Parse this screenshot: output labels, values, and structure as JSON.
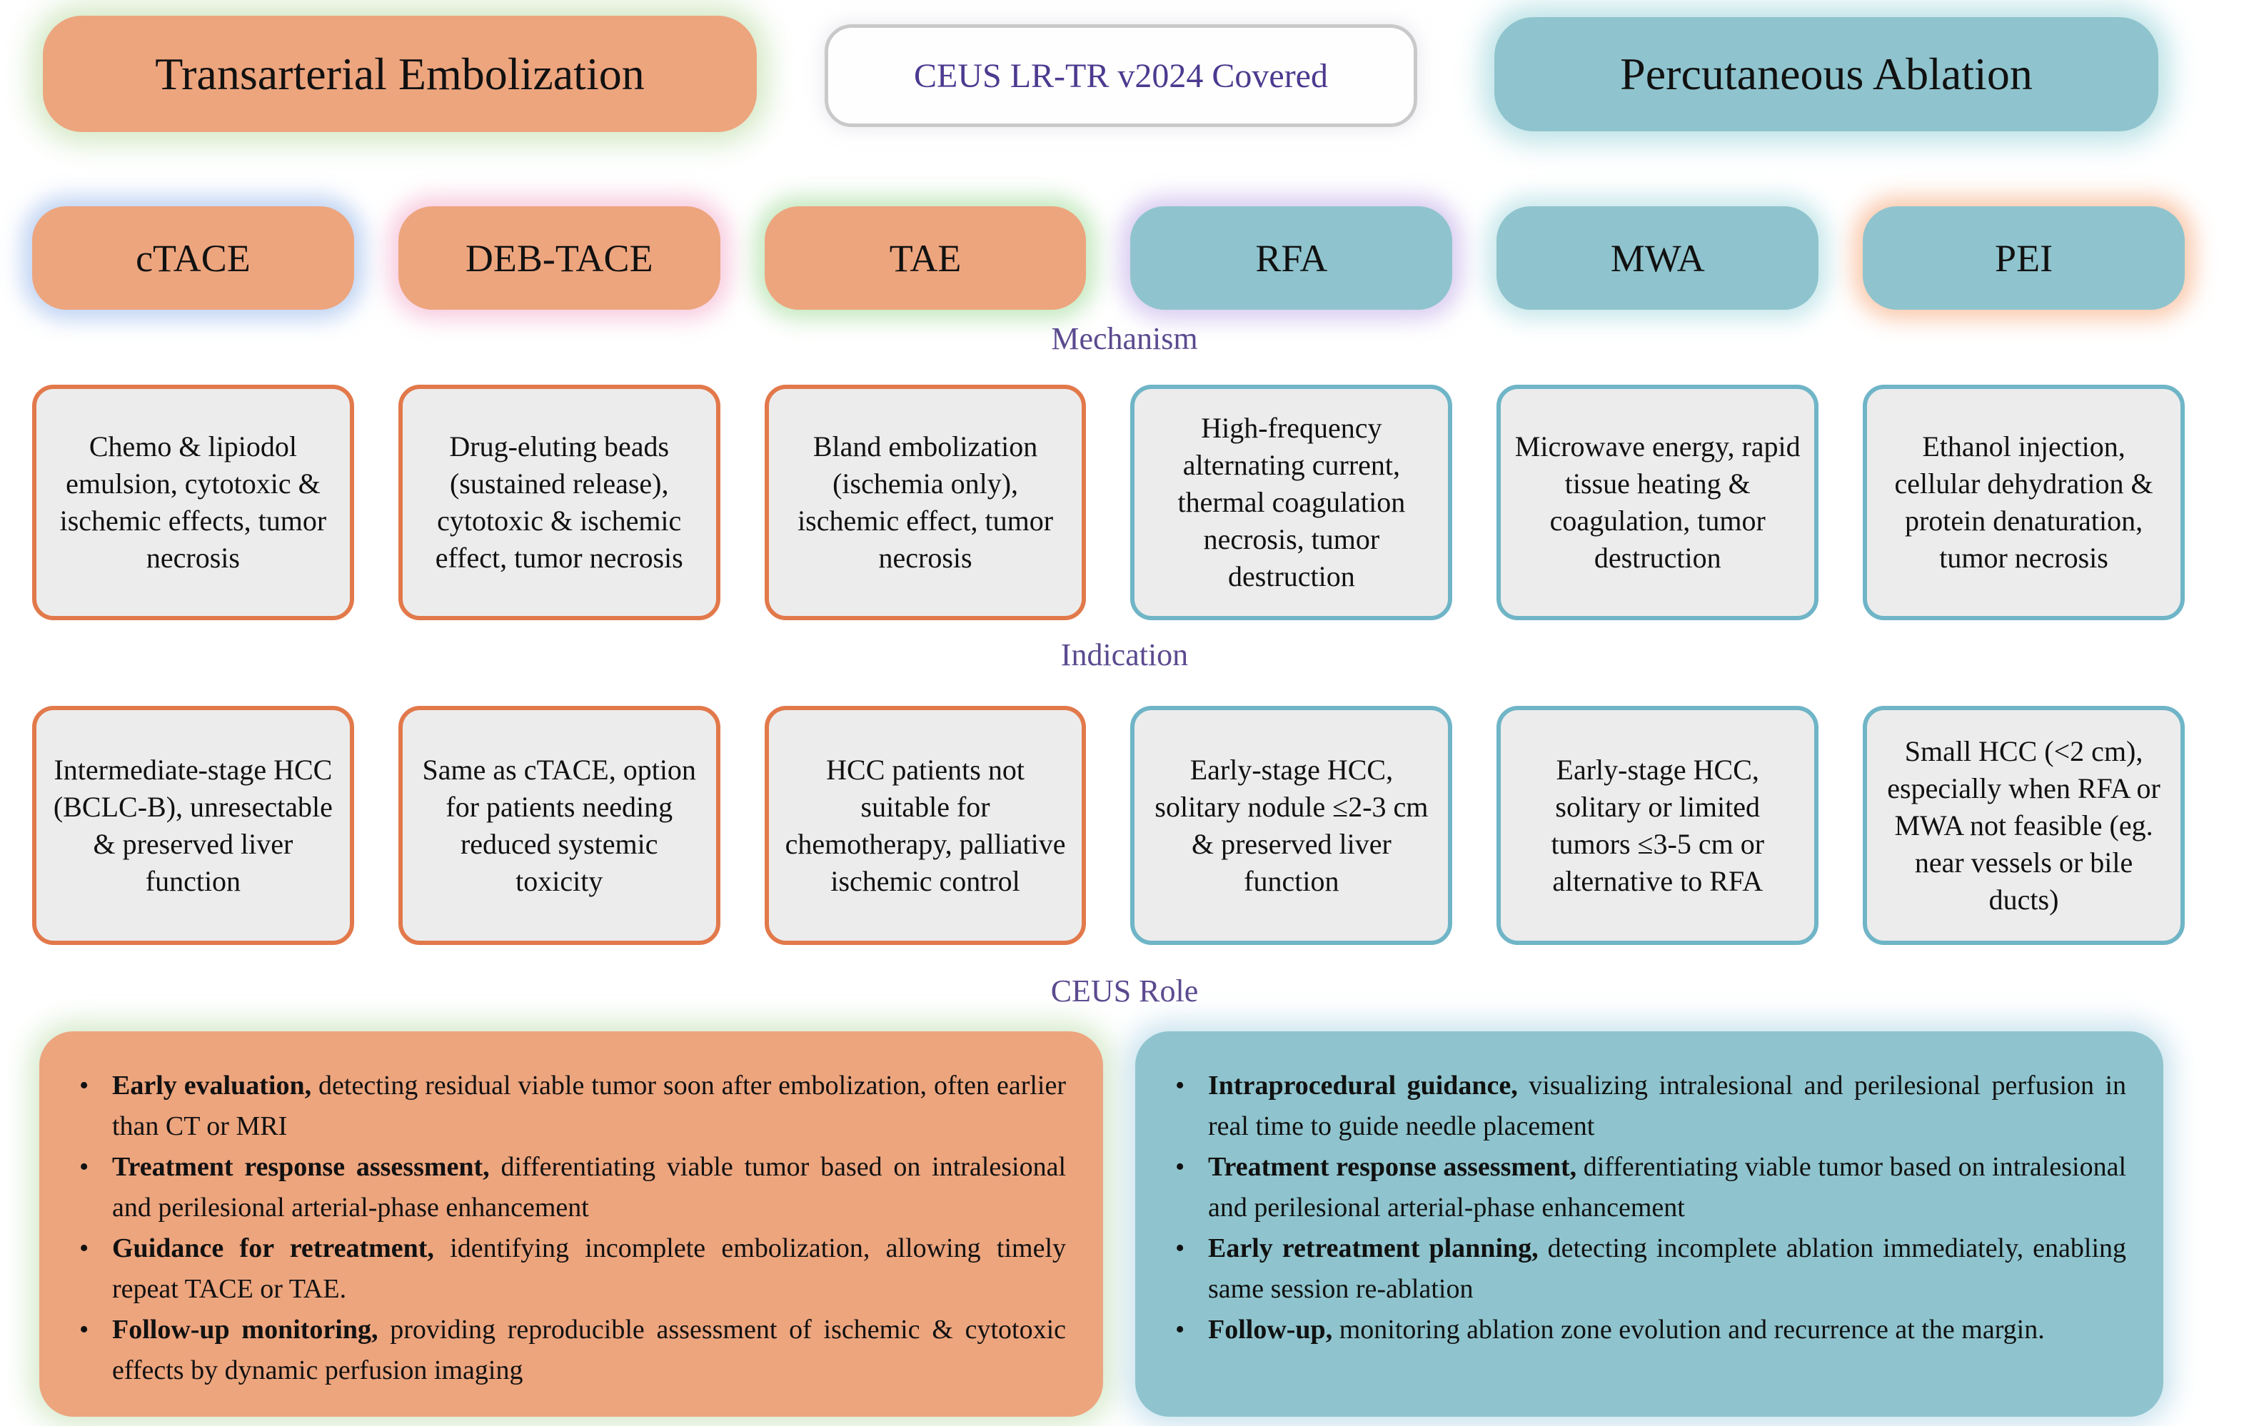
{
  "title_row": {
    "left": "Transarterial Embolization",
    "center": "CEUS LR-TR v2024 Covered",
    "right": "Percutaneous Ablation"
  },
  "section_labels": {
    "mechanism": "Mechanism",
    "indication": "Indication",
    "ceus_role": "CEUS Role"
  },
  "columns": [
    {
      "label": "cTACE",
      "group": "embolization",
      "mechanism": "Chemo & lipiodol emulsion, cytotoxic & ischemic effects, tumor necrosis",
      "indication": "Intermediate-stage HCC (BCLC-B), unresectable & preserved liver function"
    },
    {
      "label": "DEB-TACE",
      "group": "embolization",
      "mechanism": "Drug-eluting beads (sustained release), cytotoxic & ischemic effect, tumor necrosis",
      "indication": "Same as cTACE, option for patients needing reduced systemic toxicity"
    },
    {
      "label": "TAE",
      "group": "embolization",
      "mechanism": "Bland embolization (ischemia only), ischemic effect, tumor necrosis",
      "indication": "HCC patients not suitable for chemotherapy, palliative ischemic control"
    },
    {
      "label": "RFA",
      "group": "ablation",
      "mechanism": "High-frequency alternating current, thermal coagulation necrosis, tumor destruction",
      "indication": "Early-stage HCC, solitary nodule ≤2-3 cm & preserved liver function"
    },
    {
      "label": "MWA",
      "group": "ablation",
      "mechanism": "Microwave energy, rapid tissue heating & coagulation, tumor destruction",
      "indication": "Early-stage HCC, solitary or limited tumors ≤3-5 cm or alternative to RFA"
    },
    {
      "label": "PEI",
      "group": "ablation",
      "mechanism": "Ethanol injection, cellular dehydration & protein denaturation, tumor necrosis",
      "indication": "Small HCC (<2 cm), especially when RFA or MWA not feasible (eg. near vessels or bile ducts)"
    }
  ],
  "ceus_role": {
    "embolization_bullets": [
      {
        "lead": "Early evaluation,",
        "text": "detecting residual viable tumor soon after embolization, often earlier than CT or MRI"
      },
      {
        "lead": "Treatment response assessment,",
        "text": "differentiating viable tumor based on intralesional and perilesional arterial-phase enhancement"
      },
      {
        "lead": "Guidance for retreatment,",
        "text": "identifying incomplete embolization, allowing timely repeat TACE or TAE."
      },
      {
        "lead": "Follow-up monitoring,",
        "text": "providing reproducible assessment of ischemic & cytotoxic effects by dynamic perfusion imaging"
      }
    ],
    "ablation_bullets": [
      {
        "lead": "Intraprocedural guidance,",
        "text": "visualizing intralesional and perilesional perfusion in real time to guide needle placement"
      },
      {
        "lead": "Treatment response assessment,",
        "text": "differentiating viable tumor based on intralesional and perilesional arterial-phase enhancement"
      },
      {
        "lead": "Early retreatment planning,",
        "text": "detecting incomplete ablation immediately, enabling same session re-ablation"
      },
      {
        "lead": "Follow-up,",
        "text": "monitoring ablation zone evolution and recurrence at the margin."
      }
    ]
  },
  "colors": {
    "embolization_fill": "#EDA57E",
    "ablation_fill": "#8FC4CE",
    "embolization_border": "#E2794B",
    "ablation_border": "#6FB5C7",
    "panel_fill": "#ECECEC",
    "section_label_text": "#5B4A8F",
    "ceus_badge_text": "#4C3A8F"
  }
}
